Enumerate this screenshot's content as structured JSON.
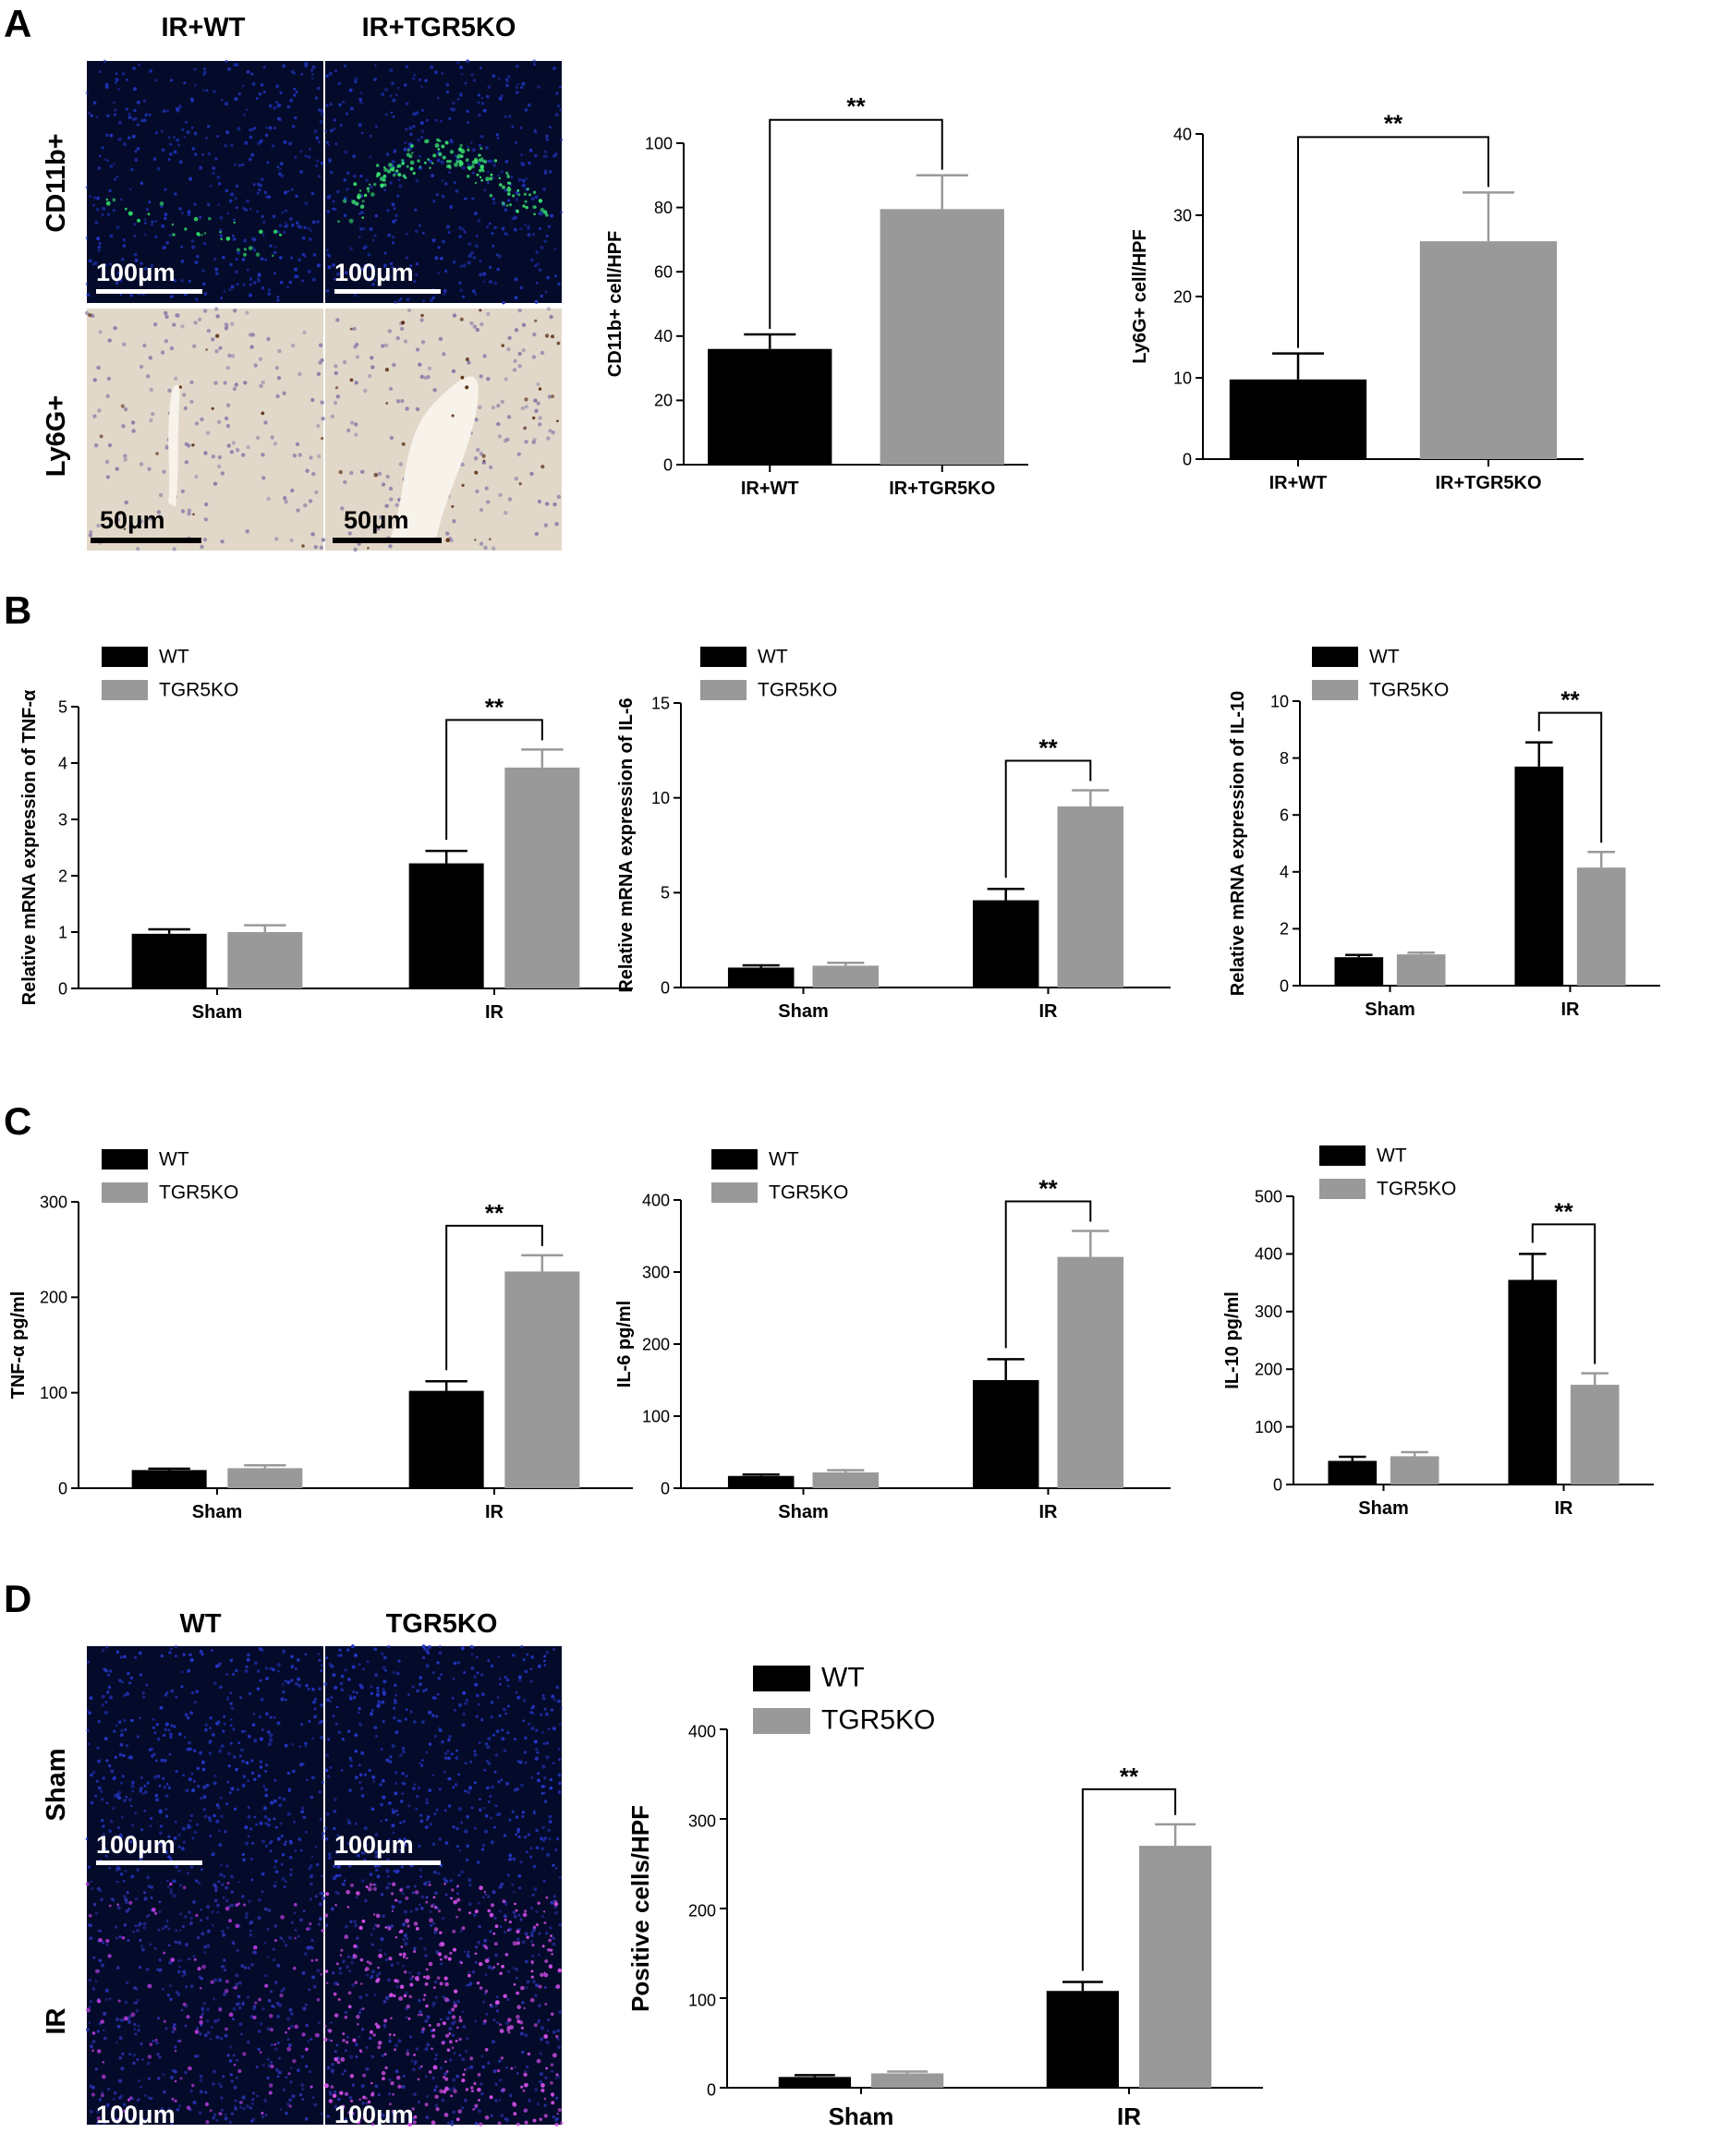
{
  "colors": {
    "wt": "#000000",
    "ko": "#999999",
    "axis": "#000000"
  },
  "panelA": {
    "label": "A",
    "col_titles": [
      "IR+WT",
      "IR+TGR5KO"
    ],
    "row_labels": [
      "CD11b+",
      "Ly6G+"
    ],
    "scale_bars": [
      "100μm",
      "100μm",
      "50μm",
      "50μm"
    ],
    "images": [
      {
        "name": "cd11b-wt-image",
        "kind": "fluor",
        "tint": "blue-green-sparse"
      },
      {
        "name": "cd11b-ko-image",
        "kind": "fluor",
        "tint": "blue-green-dense"
      },
      {
        "name": "ly6g-wt-image",
        "kind": "ihc",
        "tint": "beige-sparse"
      },
      {
        "name": "ly6g-ko-image",
        "kind": "ihc",
        "tint": "beige-dense"
      }
    ]
  },
  "panelB": {
    "label": "B"
  },
  "panelC": {
    "label": "C"
  },
  "panelD": {
    "label": "D",
    "col_titles": [
      "WT",
      "TGR5KO"
    ],
    "row_labels": [
      "Sham",
      "IR"
    ],
    "scale_bars": [
      "100μm",
      "100μm",
      "100μm",
      "100μm"
    ],
    "images": [
      {
        "name": "sham-wt-image",
        "kind": "fluor",
        "tint": "blue"
      },
      {
        "name": "sham-ko-image",
        "kind": "fluor",
        "tint": "blue"
      },
      {
        "name": "ir-wt-image",
        "kind": "fluor",
        "tint": "purple-sparse"
      },
      {
        "name": "ir-ko-image",
        "kind": "fluor",
        "tint": "purple-dense"
      }
    ]
  },
  "chart_data": [
    {
      "id": "a1",
      "type": "bar",
      "ylabel": "CD11b+ cell/HPF",
      "ylim": [
        0,
        100
      ],
      "yticks": [
        0,
        20,
        40,
        60,
        80,
        100
      ],
      "categories": [
        "IR+WT",
        "IR+TGR5KO"
      ],
      "series": [
        {
          "values": [
            36,
            79.5
          ],
          "errors": [
            4.5,
            10.5
          ]
        }
      ],
      "significance": [
        {
          "label": "**",
          "from": "IR+WT",
          "to": "IR+TGR5KO"
        }
      ]
    },
    {
      "id": "a2",
      "type": "bar",
      "ylabel": "Ly6G+ cell/HPF",
      "ylim": [
        0,
        40
      ],
      "yticks": [
        0,
        10,
        20,
        30,
        40
      ],
      "categories": [
        "IR+WT",
        "IR+TGR5KO"
      ],
      "series": [
        {
          "values": [
            9.8,
            26.8
          ],
          "errors": [
            3.2,
            6.0
          ]
        }
      ],
      "significance": [
        {
          "label": "**",
          "from": "IR+WT",
          "to": "IR+TGR5KO"
        }
      ]
    },
    {
      "id": "b1",
      "type": "bar",
      "ylabel": "Relative mRNA expression of TNF-α",
      "ylim": [
        0,
        5
      ],
      "yticks": [
        0,
        1,
        2,
        3,
        4,
        5
      ],
      "categories": [
        "Sham",
        "IR"
      ],
      "legend": "top-left",
      "series": [
        {
          "name": "WT",
          "values": [
            0.97,
            2.22
          ],
          "errors": [
            0.08,
            0.22
          ]
        },
        {
          "name": "TGR5KO",
          "values": [
            1.0,
            3.92
          ],
          "errors": [
            0.12,
            0.32
          ]
        }
      ],
      "significance": [
        {
          "label": "**",
          "category": "IR"
        }
      ]
    },
    {
      "id": "b2",
      "type": "bar",
      "ylabel": "Relative mRNA expression of IL-6",
      "ylim": [
        0,
        15
      ],
      "yticks": [
        0,
        5,
        10,
        15
      ],
      "categories": [
        "Sham",
        "IR"
      ],
      "legend": "top-left",
      "series": [
        {
          "name": "WT",
          "values": [
            1.05,
            4.6
          ],
          "errors": [
            0.12,
            0.6
          ]
        },
        {
          "name": "TGR5KO",
          "values": [
            1.15,
            9.55
          ],
          "errors": [
            0.15,
            0.85
          ]
        }
      ],
      "significance": [
        {
          "label": "**",
          "category": "IR"
        }
      ]
    },
    {
      "id": "b3",
      "type": "bar",
      "ylabel": "Relative mRNA expression of IL-10",
      "ylim": [
        0,
        10
      ],
      "yticks": [
        0,
        2,
        4,
        6,
        8,
        10
      ],
      "categories": [
        "Sham",
        "IR"
      ],
      "legend": "top-left",
      "series": [
        {
          "name": "WT",
          "values": [
            1.0,
            7.7
          ],
          "errors": [
            0.08,
            0.85
          ]
        },
        {
          "name": "TGR5KO",
          "values": [
            1.1,
            4.15
          ],
          "errors": [
            0.06,
            0.55
          ]
        }
      ],
      "significance": [
        {
          "label": "**",
          "category": "IR"
        }
      ]
    },
    {
      "id": "c1",
      "type": "bar",
      "ylabel": "TNF-α pg/ml",
      "ylim": [
        0,
        300
      ],
      "yticks": [
        0,
        100,
        200,
        300
      ],
      "categories": [
        "Sham",
        "IR"
      ],
      "legend": "top-left",
      "series": [
        {
          "name": "WT",
          "values": [
            19,
            102
          ],
          "errors": [
            1.5,
            10
          ]
        },
        {
          "name": "TGR5KO",
          "values": [
            21,
            227
          ],
          "errors": [
            3,
            17
          ]
        }
      ],
      "significance": [
        {
          "label": "**",
          "category": "IR"
        }
      ]
    },
    {
      "id": "c2",
      "type": "bar",
      "ylabel": "IL-6 pg/ml",
      "ylim": [
        0,
        400
      ],
      "yticks": [
        0,
        100,
        200,
        300,
        400
      ],
      "categories": [
        "Sham",
        "IR"
      ],
      "legend": "top-left",
      "series": [
        {
          "name": "WT",
          "values": [
            17,
            150
          ],
          "errors": [
            2,
            29
          ]
        },
        {
          "name": "TGR5KO",
          "values": [
            22,
            321
          ],
          "errors": [
            3,
            36
          ]
        }
      ],
      "significance": [
        {
          "label": "**",
          "category": "IR"
        }
      ]
    },
    {
      "id": "c3",
      "type": "bar",
      "ylabel": "IL-10 pg/ml",
      "ylim": [
        0,
        500
      ],
      "yticks": [
        0,
        100,
        200,
        300,
        400,
        500
      ],
      "categories": [
        "Sham",
        "IR"
      ],
      "legend": "top-left",
      "series": [
        {
          "name": "WT",
          "values": [
            41,
            355
          ],
          "errors": [
            7,
            45
          ]
        },
        {
          "name": "TGR5KO",
          "values": [
            49,
            173
          ],
          "errors": [
            7,
            20
          ]
        }
      ],
      "significance": [
        {
          "label": "**",
          "category": "IR"
        }
      ]
    },
    {
      "id": "d1",
      "type": "bar",
      "ylabel": "Positive cells/HPF",
      "ylim": [
        0,
        400
      ],
      "yticks": [
        0,
        100,
        200,
        300,
        400
      ],
      "categories": [
        "Sham",
        "IR"
      ],
      "legend": "top-left",
      "series": [
        {
          "name": "WT",
          "values": [
            12,
            108
          ],
          "errors": [
            2,
            10
          ]
        },
        {
          "name": "TGR5KO",
          "values": [
            16,
            270
          ],
          "errors": [
            2,
            24
          ]
        }
      ],
      "significance": [
        {
          "label": "**",
          "category": "IR"
        }
      ]
    }
  ]
}
